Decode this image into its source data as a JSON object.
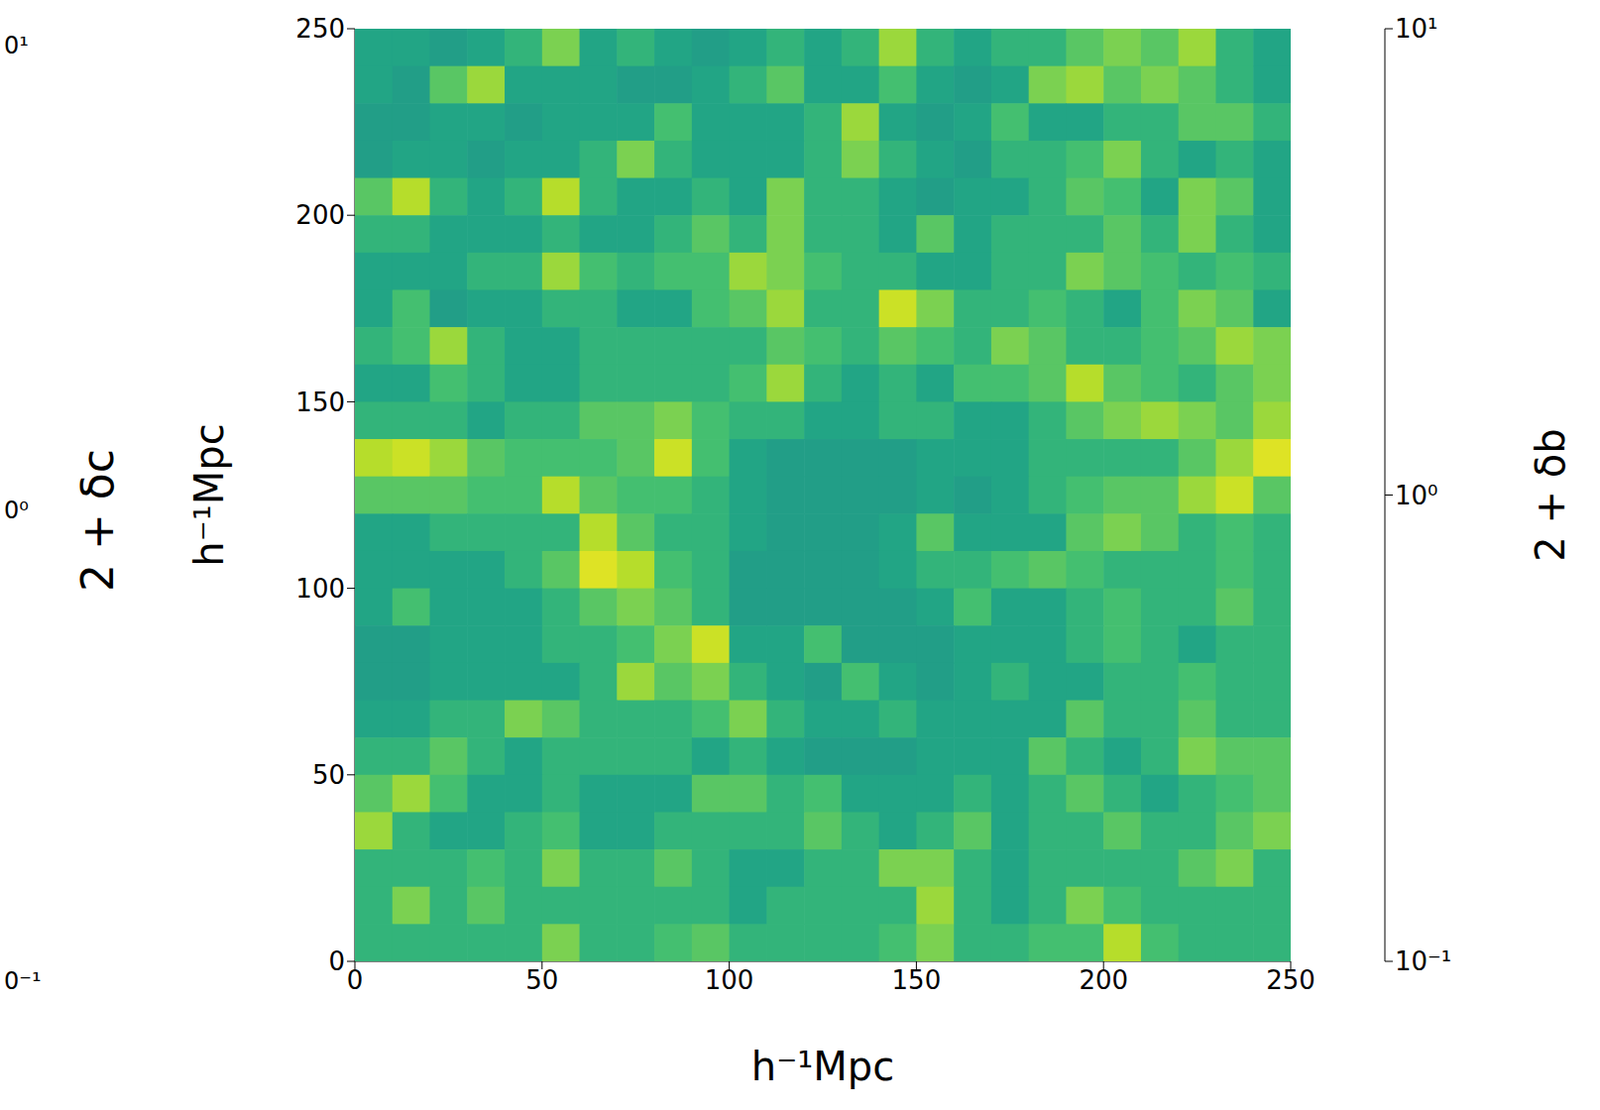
{
  "chart_data": {
    "type": "heatmap",
    "xlabel": "h⁻¹Mpc",
    "ylabel": "h⁻¹Mpc",
    "xlim": [
      0,
      250
    ],
    "ylim": [
      0,
      250
    ],
    "xticks": [
      0,
      50,
      100,
      150,
      200,
      250
    ],
    "yticks": [
      0,
      50,
      100,
      150,
      200,
      250
    ],
    "x": [
      5,
      15,
      25,
      35,
      45,
      55,
      65,
      75,
      85,
      95,
      105,
      115,
      125,
      135,
      145,
      155,
      165,
      175,
      185,
      195,
      205,
      215,
      225,
      235,
      245
    ],
    "y": [
      245,
      235,
      225,
      215,
      205,
      195,
      185,
      175,
      165,
      155,
      145,
      135,
      125,
      115,
      105,
      95,
      85,
      75,
      65,
      55,
      45,
      35,
      25,
      15,
      5
    ],
    "z": [
      [
        1.5,
        1.5,
        1.3,
        1.5,
        2,
        4,
        1.5,
        2,
        1.5,
        1.3,
        1.5,
        2,
        1.5,
        2,
        5,
        2,
        1.5,
        2,
        2,
        3,
        4,
        3,
        5,
        2,
        1.5
      ],
      [
        1.5,
        1.3,
        3,
        5,
        1.5,
        1.5,
        1.5,
        1.3,
        1.3,
        1.5,
        2,
        3,
        1.5,
        1.5,
        2.5,
        1.5,
        1.3,
        1.5,
        4,
        5,
        3,
        4,
        3,
        2,
        1.5
      ],
      [
        1.3,
        1.3,
        1.5,
        1.5,
        1.3,
        1.5,
        1.5,
        1.5,
        2.5,
        1.5,
        1.5,
        1.5,
        2,
        5,
        1.5,
        1.3,
        1.5,
        2.5,
        1.5,
        1.5,
        2,
        2,
        3,
        3,
        2
      ],
      [
        1.3,
        1.5,
        1.5,
        1.3,
        1.5,
        1.5,
        2,
        4,
        2,
        1.5,
        1.5,
        1.5,
        2,
        4,
        2,
        1.5,
        1.3,
        2,
        2,
        2.5,
        4,
        2,
        1.5,
        2,
        1.5
      ],
      [
        3,
        6,
        2,
        1.5,
        2,
        6,
        2,
        1.5,
        1.5,
        2,
        1.5,
        4,
        2,
        2,
        1.5,
        1.3,
        1.5,
        1.5,
        2,
        3,
        2.5,
        1.5,
        4,
        3,
        1.5
      ],
      [
        2,
        2,
        1.5,
        1.5,
        1.5,
        2,
        1.5,
        1.5,
        2,
        3,
        2,
        4,
        2,
        2,
        1.5,
        3,
        1.5,
        2,
        2,
        2,
        3,
        2,
        4,
        2,
        1.5
      ],
      [
        1.5,
        1.5,
        1.5,
        2,
        2,
        5,
        2.5,
        2,
        2.5,
        2.5,
        5,
        4,
        2.5,
        2,
        2,
        1.5,
        1.5,
        2,
        2,
        4,
        3,
        2.5,
        2,
        2.5,
        2
      ],
      [
        1.5,
        2.5,
        1.3,
        1.5,
        1.5,
        2,
        2,
        1.5,
        1.5,
        2.5,
        3,
        5,
        2,
        2,
        7,
        4,
        2,
        2,
        2.5,
        2,
        1.5,
        2.5,
        4,
        3,
        1.5
      ],
      [
        2,
        2.5,
        5,
        2,
        1.5,
        1.5,
        2,
        2,
        2,
        2,
        2,
        3,
        2.5,
        2,
        3,
        2.5,
        2,
        4,
        3,
        2,
        2,
        2.5,
        3,
        5,
        4
      ],
      [
        1.5,
        1.5,
        2.5,
        2,
        1.5,
        1.5,
        2,
        2,
        2,
        2,
        2.5,
        5,
        2,
        1.5,
        2,
        1.5,
        2.5,
        2.5,
        3,
        6,
        3,
        2.5,
        2,
        3,
        4
      ],
      [
        2,
        2,
        2,
        1.5,
        2,
        2,
        3,
        3,
        4,
        2.5,
        2,
        2,
        1.5,
        1.5,
        2,
        2,
        1.5,
        1.5,
        2,
        3,
        4,
        5,
        4,
        3,
        5
      ],
      [
        6,
        7,
        5,
        3,
        2.5,
        2.5,
        2.5,
        3,
        7,
        2.5,
        1.5,
        1.3,
        1.3,
        1.3,
        1.3,
        1.5,
        1.5,
        1.5,
        2,
        2,
        2,
        2,
        3,
        5,
        8
      ],
      [
        3,
        3,
        3,
        2.5,
        2.5,
        6,
        3,
        2.5,
        2.5,
        2,
        1.5,
        1.3,
        1.3,
        1.3,
        1.3,
        1.5,
        1.3,
        1.5,
        2,
        2.5,
        3,
        3,
        5,
        7,
        3
      ],
      [
        1.5,
        1.5,
        2,
        2,
        2,
        2,
        6,
        3,
        2,
        2,
        1.5,
        1.3,
        1.3,
        1.3,
        1.5,
        3,
        1.5,
        1.5,
        1.5,
        3,
        4,
        3,
        2,
        2.5,
        2
      ],
      [
        1.5,
        1.5,
        1.5,
        1.5,
        2,
        3,
        8,
        6,
        2.5,
        2,
        1.3,
        1.3,
        1.3,
        1.3,
        1.5,
        2,
        2,
        2.5,
        3,
        2.5,
        2,
        2,
        2,
        2.5,
        2
      ],
      [
        1.5,
        2.5,
        1.5,
        1.5,
        1.5,
        2,
        3,
        4,
        3,
        2,
        1.3,
        1.3,
        1.3,
        1.3,
        1.3,
        1.5,
        2.5,
        1.5,
        1.5,
        2,
        2.5,
        2,
        2,
        3,
        2
      ],
      [
        1.3,
        1.3,
        1.5,
        1.5,
        1.5,
        2,
        2,
        2.5,
        4,
        7,
        1.5,
        1.5,
        2.5,
        1.3,
        1.3,
        1.3,
        1.5,
        1.5,
        1.5,
        2,
        2.5,
        2,
        1.5,
        2,
        2
      ],
      [
        1.3,
        1.3,
        1.5,
        1.5,
        1.5,
        1.5,
        2,
        5,
        3,
        4,
        2,
        1.5,
        1.3,
        2.5,
        1.5,
        1.3,
        1.5,
        2,
        1.5,
        1.5,
        2,
        2,
        2.5,
        2,
        2
      ],
      [
        1.5,
        1.5,
        2,
        2,
        4,
        3,
        2,
        2,
        2,
        2.5,
        4,
        2,
        1.5,
        1.5,
        2,
        1.5,
        1.5,
        1.5,
        1.5,
        3,
        2,
        2,
        3,
        2,
        2
      ],
      [
        2,
        2,
        3,
        2,
        1.5,
        2,
        2,
        2,
        2,
        1.5,
        2,
        1.5,
        1.3,
        1.3,
        1.3,
        1.5,
        1.5,
        1.5,
        3,
        2,
        1.5,
        2,
        4,
        3,
        3
      ],
      [
        3,
        5,
        2.5,
        1.5,
        1.5,
        2,
        1.5,
        1.5,
        1.5,
        3,
        3,
        2,
        2.5,
        1.5,
        1.5,
        1.5,
        2,
        1.5,
        2,
        3,
        2,
        1.5,
        2,
        2.5,
        3
      ],
      [
        5,
        2,
        1.5,
        1.5,
        2,
        2.5,
        1.5,
        1.5,
        2,
        2,
        2,
        2,
        3,
        2,
        1.5,
        2,
        3,
        1.5,
        2,
        2,
        3,
        2,
        2,
        3,
        4
      ],
      [
        2,
        2,
        2,
        2.5,
        2,
        4,
        2,
        2,
        3,
        2,
        1.5,
        1.5,
        2,
        2,
        4,
        4,
        2,
        1.5,
        2,
        2,
        2,
        2,
        3,
        4,
        2
      ],
      [
        2,
        4,
        2,
        3,
        2,
        2,
        2,
        2,
        2,
        2,
        1.5,
        2,
        2,
        2,
        2,
        5,
        2,
        1.5,
        2,
        4,
        2.5,
        2,
        2,
        2,
        2
      ],
      [
        2,
        2,
        2,
        2,
        2,
        4,
        2,
        2,
        2.5,
        3,
        2,
        2,
        2,
        2,
        2.5,
        4,
        2,
        2,
        2.5,
        2.5,
        6,
        2.5,
        2,
        2,
        2
      ]
    ],
    "colorbar": {
      "label": "2 + δb",
      "lim": [
        0.1,
        10
      ],
      "log": true,
      "ticks": [
        {
          "value": 0.1,
          "label": "10⁻¹"
        },
        {
          "value": 1,
          "label": "10⁰"
        },
        {
          "value": 10,
          "label": "10¹"
        }
      ]
    },
    "annotations": [
      "2 + δc",
      "0¹",
      "0⁰",
      "0⁻¹"
    ]
  }
}
